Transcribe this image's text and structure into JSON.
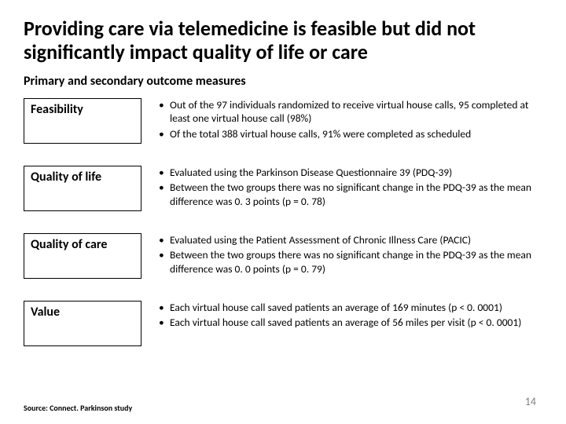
{
  "title": "Providing care via telemedicine is feasible but did not significantly impact quality of life or care",
  "subtitle": "Primary and secondary outcome measures",
  "rows": [
    {
      "label": "Feasibility",
      "bullets": [
        "Out of the 97 individuals randomized to receive virtual house calls, 95 completed at least one virtual house call (98%)",
        "Of the total 388 virtual house calls, 91% were completed as scheduled"
      ]
    },
    {
      "label": "Quality of life",
      "bullets": [
        "Evaluated using the Parkinson Disease Questionnaire 39 (PDQ-39)",
        "Between the two groups there was no significant change in the PDQ-39 as the mean difference was 0. 3 points (p = 0. 78)"
      ]
    },
    {
      "label": "Quality of care",
      "bullets": [
        "Evaluated using the Patient Assessment of Chronic Illness Care (PACIC)",
        "Between the two groups there was no significant change in the PDQ-39 as the mean difference was 0. 0 points (p = 0. 79)"
      ]
    },
    {
      "label": "Value",
      "bullets": [
        "Each virtual house call saved patients an average of 169 minutes (p < 0. 0001)",
        "Each virtual house call saved patients an average of 56 miles per visit (p < 0. 0001)"
      ]
    }
  ],
  "source": "Source: Connect. Parkinson study",
  "page_number": "14"
}
